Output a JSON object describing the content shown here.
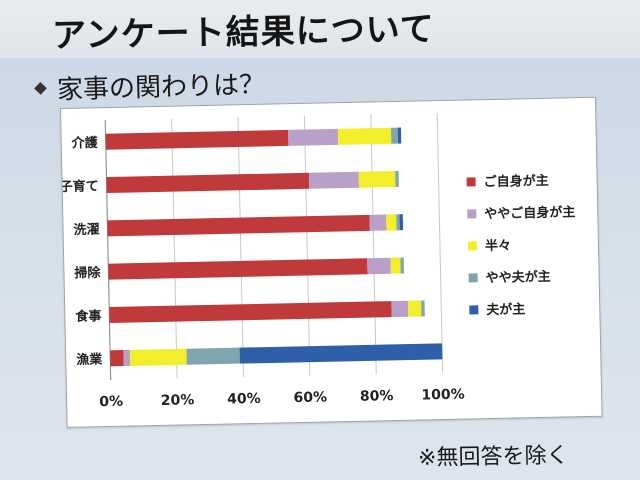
{
  "title": "アンケート結果について",
  "subtitle": "家事の関わりは？",
  "note": "※無回答を除く",
  "chart_data": {
    "type": "bar",
    "orientation": "horizontal",
    "stacked": "100%",
    "categories": [
      "介護",
      "子育て",
      "洗濯",
      "掃除",
      "食事",
      "漁業"
    ],
    "series": [
      {
        "name": "ご自身が主",
        "color": "#c0393b",
        "values": [
          55,
          61,
          79,
          78,
          85,
          4
        ]
      },
      {
        "name": "ややご自身が主",
        "color": "#b9a0c8",
        "values": [
          15,
          15,
          5,
          7,
          5,
          2
        ]
      },
      {
        "name": "半々",
        "color": "#f2ef2a",
        "values": [
          16,
          11,
          3,
          3,
          4,
          17
        ]
      },
      {
        "name": "やや夫が主",
        "color": "#7fa6ad",
        "values": [
          2,
          1,
          1,
          1,
          1,
          16
        ]
      },
      {
        "name": "夫が主",
        "color": "#2f5fa8",
        "values": [
          1,
          0,
          1,
          0,
          0,
          61
        ]
      }
    ],
    "x_ticks": [
      "0%",
      "20%",
      "40%",
      "60%",
      "80%",
      "100%"
    ],
    "xlim": [
      0,
      100
    ],
    "grid": "vertical",
    "legend_position": "right"
  }
}
